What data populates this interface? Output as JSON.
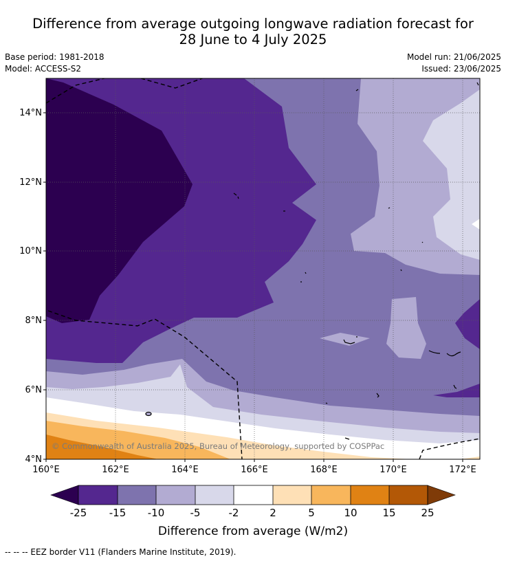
{
  "title_line1": "Difference from average outgoing longwave radiation forecast for",
  "title_line2": "28 June to 4 July 2025",
  "base_period": "Base period: 1981-2018",
  "model": "Model: ACCESS-S2",
  "model_run": "Model run: 21/06/2025",
  "issued": "Issued: 23/06/2025",
  "map": {
    "lon_ticks": [
      "160°E",
      "162°E",
      "164°E",
      "166°E",
      "168°E",
      "170°E",
      "172°E"
    ],
    "lat_ticks": [
      "14°N",
      "12°N",
      "10°N",
      "8°N",
      "6°N",
      "4°N"
    ],
    "lon_range": [
      160,
      172.5
    ],
    "lat_range": [
      4,
      15
    ],
    "gridlines": true,
    "copyright": "© Commonwealth of Australia 2025, Bureau of Meteorology, supported by COSPPac"
  },
  "colorbar": {
    "label": "Difference from average (W/m2)",
    "ticks": [
      "-25",
      "-15",
      "-10",
      "-5",
      "-2",
      "2",
      "5",
      "10",
      "15",
      "25"
    ],
    "colors": [
      "#2c0050",
      "#54278f",
      "#7e73ae",
      "#b2abd2",
      "#d8d8ea",
      "#ffffff",
      "#fee0b6",
      "#f8b65c",
      "#e08214",
      "#b35806",
      "#7f3b08"
    ]
  },
  "footer": "--  --  -- EEZ border V11 (Flanders Marine Institute, 2019)."
}
